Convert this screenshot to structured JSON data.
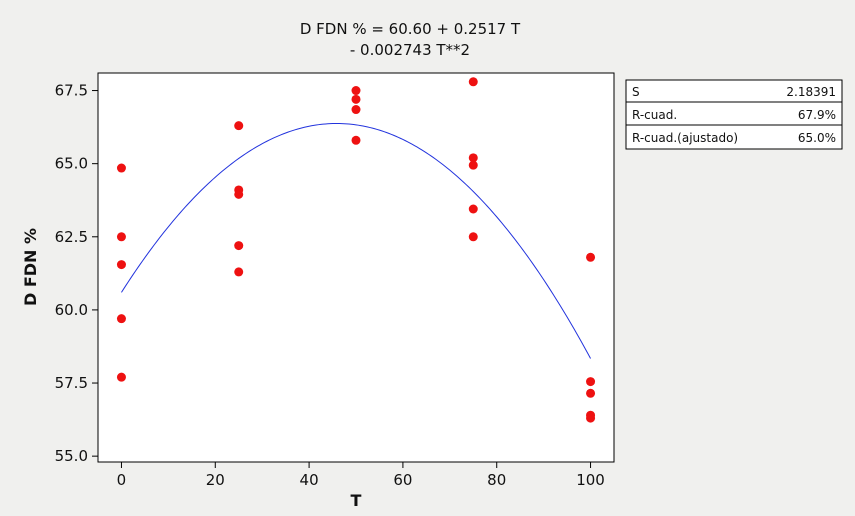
{
  "chart_data": {
    "type": "scatter",
    "title_line1": "D FDN % =  60.60 + 0.2517 T",
    "title_line2": "- 0.002743 T**2",
    "xlabel": "T",
    "ylabel": "D FDN %",
    "xlim": [
      -5,
      105
    ],
    "ylim": [
      54.8,
      68.1
    ],
    "xticks": [
      0,
      20,
      40,
      60,
      80,
      100
    ],
    "yticks": [
      55.0,
      57.5,
      60.0,
      62.5,
      65.0,
      67.5
    ],
    "ytick_labels": [
      "55.0",
      "57.5",
      "60.0",
      "62.5",
      "65.0",
      "67.5"
    ],
    "points": [
      {
        "x": 0,
        "y": 64.85
      },
      {
        "x": 0,
        "y": 62.5
      },
      {
        "x": 0,
        "y": 61.55
      },
      {
        "x": 0,
        "y": 59.7
      },
      {
        "x": 0,
        "y": 57.7
      },
      {
        "x": 25,
        "y": 66.3
      },
      {
        "x": 25,
        "y": 64.1
      },
      {
        "x": 25,
        "y": 63.95
      },
      {
        "x": 25,
        "y": 62.2
      },
      {
        "x": 25,
        "y": 61.3
      },
      {
        "x": 50,
        "y": 67.5
      },
      {
        "x": 50,
        "y": 67.2
      },
      {
        "x": 50,
        "y": 66.85
      },
      {
        "x": 50,
        "y": 65.8
      },
      {
        "x": 75,
        "y": 67.8
      },
      {
        "x": 75,
        "y": 65.2
      },
      {
        "x": 75,
        "y": 64.95
      },
      {
        "x": 75,
        "y": 63.45
      },
      {
        "x": 75,
        "y": 62.5
      },
      {
        "x": 100,
        "y": 61.8
      },
      {
        "x": 100,
        "y": 57.55
      },
      {
        "x": 100,
        "y": 57.15
      },
      {
        "x": 100,
        "y": 56.4
      },
      {
        "x": 100,
        "y": 56.3
      }
    ],
    "fit": {
      "intercept": 60.6,
      "linear": 0.2517,
      "quadratic": -0.002743,
      "x_range": [
        0,
        100
      ]
    },
    "stats": [
      {
        "label": "S",
        "value": "2.18391"
      },
      {
        "label": "R-cuad.",
        "value": "67.9%"
      },
      {
        "label": "R-cuad.(ajustado)",
        "value": "65.0%"
      }
    ],
    "colors": {
      "points": "#ee1111",
      "fit_line": "#2233dd",
      "plot_bg": "#ffffff",
      "background": "#f0f0ee"
    }
  }
}
